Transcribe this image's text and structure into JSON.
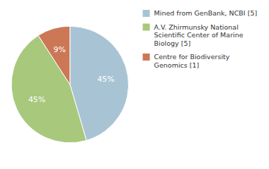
{
  "chart_data": {
    "type": "pie",
    "categories": [
      "Mined from GenBank, NCBI [5]",
      "A.V. Zhirmunsky National\nScientific Center of Marine\nBiology [5]",
      "Centre for Biodiversity\nGenomics [1]"
    ],
    "values": [
      45,
      45,
      9
    ],
    "value_labels": [
      "45%",
      "45%",
      "9%"
    ],
    "colors": [
      "#a8c4d4",
      "#a8c87c",
      "#cc7755"
    ],
    "data_labels": true,
    "legend": "right"
  }
}
